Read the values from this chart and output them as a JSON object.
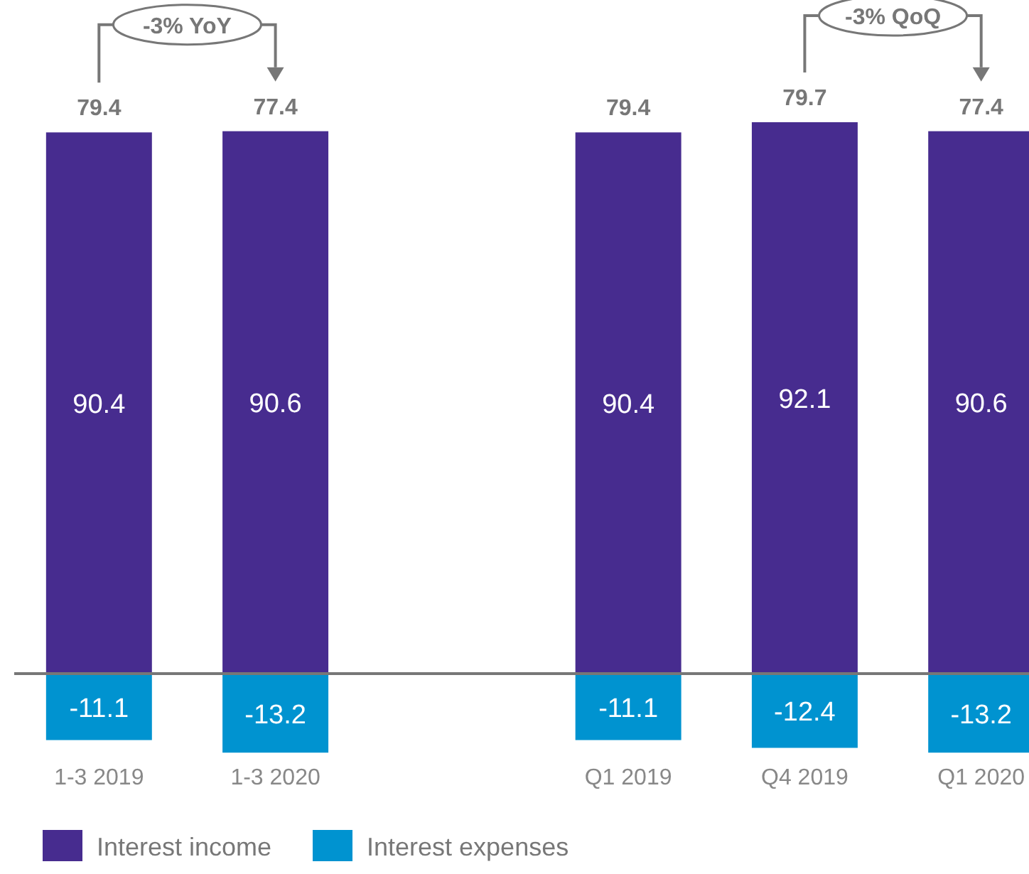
{
  "chart_data": {
    "type": "bar",
    "stacked": true,
    "categories": [
      "1-3 2019",
      "1-3 2020",
      null,
      "Q1 2019",
      "Q4 2019",
      "Q1 2020"
    ],
    "series": [
      {
        "name": "Interest income",
        "color": "#472c8f",
        "values": [
          90.4,
          90.6,
          null,
          90.4,
          92.1,
          90.6
        ]
      },
      {
        "name": "Interest expenses",
        "color": "#0093d0",
        "values": [
          -11.1,
          -13.2,
          null,
          -11.1,
          -12.4,
          -13.2
        ]
      }
    ],
    "totals": [
      "79.4",
      "77.4",
      null,
      "79.4",
      "79.7",
      "77.4"
    ],
    "data_labels": true,
    "legend": "bottom left",
    "annotations": [
      "-3% YoY",
      "-3% QoQ"
    ]
  }
}
